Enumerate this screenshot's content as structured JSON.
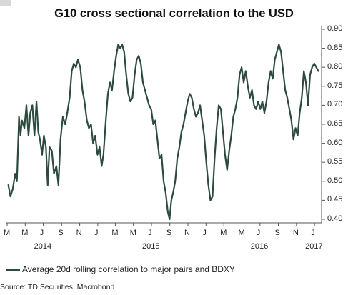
{
  "chart_data": {
    "type": "line",
    "title": "G10 cross sectional correlation to the USD",
    "xlabel": "",
    "ylabel": "",
    "x_range": [
      "2014-03-01",
      "2017-01-20"
    ],
    "ylim": [
      0.4,
      0.9
    ],
    "y_ticks": [
      0.4,
      0.45,
      0.5,
      0.55,
      0.6,
      0.65,
      0.7,
      0.75,
      0.8,
      0.85,
      0.9
    ],
    "y_tick_labels": [
      "0.40",
      "0.45",
      "0.50",
      "0.55",
      "0.60",
      "0.65",
      "0.70",
      "0.75",
      "0.80",
      "0.85",
      "0.90"
    ],
    "x_ticks": [
      {
        "date": "2014-03-01",
        "label": "M"
      },
      {
        "date": "2014-05-01",
        "label": "M"
      },
      {
        "date": "2014-07-01",
        "label": "J"
      },
      {
        "date": "2014-09-01",
        "label": "S"
      },
      {
        "date": "2014-11-01",
        "label": "N"
      },
      {
        "date": "2015-01-01",
        "label": "J"
      },
      {
        "date": "2015-03-01",
        "label": "M"
      },
      {
        "date": "2015-05-01",
        "label": "M"
      },
      {
        "date": "2015-07-01",
        "label": "J"
      },
      {
        "date": "2015-09-01",
        "label": "S"
      },
      {
        "date": "2015-11-01",
        "label": "N"
      },
      {
        "date": "2016-01-01",
        "label": "J"
      },
      {
        "date": "2016-03-01",
        "label": "M"
      },
      {
        "date": "2016-05-01",
        "label": "M"
      },
      {
        "date": "2016-07-01",
        "label": "J"
      },
      {
        "date": "2016-09-01",
        "label": "S"
      },
      {
        "date": "2016-11-01",
        "label": "N"
      },
      {
        "date": "2017-01-01",
        "label": "J"
      }
    ],
    "year_labels": [
      {
        "date": "2014-07-01",
        "label": "2014"
      },
      {
        "date": "2015-07-01",
        "label": "2015"
      },
      {
        "date": "2016-07-01",
        "label": "2016"
      },
      {
        "date": "2017-01-01",
        "label": "2017"
      }
    ],
    "grid": false,
    "legend_position": "bottom-left",
    "series": [
      {
        "name": "Average 20d rolling correlation to major pairs and BDXY",
        "color": "#2c4a3e",
        "points": [
          [
            "2014-03-05",
            0.49
          ],
          [
            "2014-03-12",
            0.46
          ],
          [
            "2014-03-20",
            0.48
          ],
          [
            "2014-03-28",
            0.52
          ],
          [
            "2014-04-03",
            0.5
          ],
          [
            "2014-04-10",
            0.67
          ],
          [
            "2014-04-15",
            0.62
          ],
          [
            "2014-04-20",
            0.66
          ],
          [
            "2014-04-28",
            0.64
          ],
          [
            "2014-05-05",
            0.7
          ],
          [
            "2014-05-12",
            0.62
          ],
          [
            "2014-05-18",
            0.68
          ],
          [
            "2014-05-25",
            0.7
          ],
          [
            "2014-06-01",
            0.62
          ],
          [
            "2014-06-08",
            0.71
          ],
          [
            "2014-06-14",
            0.63
          ],
          [
            "2014-06-20",
            0.61
          ],
          [
            "2014-06-27",
            0.57
          ],
          [
            "2014-07-03",
            0.62
          ],
          [
            "2014-07-10",
            0.59
          ],
          [
            "2014-07-16",
            0.49
          ],
          [
            "2014-07-22",
            0.59
          ],
          [
            "2014-07-30",
            0.58
          ],
          [
            "2014-08-06",
            0.52
          ],
          [
            "2014-08-14",
            0.54
          ],
          [
            "2014-08-21",
            0.49
          ],
          [
            "2014-08-28",
            0.61
          ],
          [
            "2014-09-05",
            0.67
          ],
          [
            "2014-09-13",
            0.65
          ],
          [
            "2014-09-20",
            0.68
          ],
          [
            "2014-09-28",
            0.72
          ],
          [
            "2014-10-05",
            0.79
          ],
          [
            "2014-10-12",
            0.81
          ],
          [
            "2014-10-19",
            0.8
          ],
          [
            "2014-10-26",
            0.82
          ],
          [
            "2014-11-03",
            0.8
          ],
          [
            "2014-11-10",
            0.74
          ],
          [
            "2014-11-17",
            0.71
          ],
          [
            "2014-11-25",
            0.66
          ],
          [
            "2014-12-02",
            0.64
          ],
          [
            "2014-12-09",
            0.65
          ],
          [
            "2014-12-16",
            0.6
          ],
          [
            "2014-12-23",
            0.62
          ],
          [
            "2014-12-31",
            0.57
          ],
          [
            "2015-01-07",
            0.59
          ],
          [
            "2015-01-14",
            0.54
          ],
          [
            "2015-01-20",
            0.57
          ],
          [
            "2015-01-28",
            0.66
          ],
          [
            "2015-02-04",
            0.73
          ],
          [
            "2015-02-11",
            0.76
          ],
          [
            "2015-02-18",
            0.74
          ],
          [
            "2015-02-25",
            0.79
          ],
          [
            "2015-03-04",
            0.83
          ],
          [
            "2015-03-11",
            0.86
          ],
          [
            "2015-03-18",
            0.85
          ],
          [
            "2015-03-24",
            0.86
          ],
          [
            "2015-03-31",
            0.84
          ],
          [
            "2015-04-07",
            0.78
          ],
          [
            "2015-04-14",
            0.73
          ],
          [
            "2015-04-21",
            0.71
          ],
          [
            "2015-04-28",
            0.72
          ],
          [
            "2015-05-05",
            0.78
          ],
          [
            "2015-05-12",
            0.82
          ],
          [
            "2015-05-19",
            0.83
          ],
          [
            "2015-05-26",
            0.81
          ],
          [
            "2015-06-02",
            0.76
          ],
          [
            "2015-06-09",
            0.74
          ],
          [
            "2015-06-16",
            0.72
          ],
          [
            "2015-06-23",
            0.7
          ],
          [
            "2015-06-30",
            0.69
          ],
          [
            "2015-07-07",
            0.65
          ],
          [
            "2015-07-14",
            0.66
          ],
          [
            "2015-07-21",
            0.61
          ],
          [
            "2015-07-28",
            0.56
          ],
          [
            "2015-08-04",
            0.57
          ],
          [
            "2015-08-11",
            0.5
          ],
          [
            "2015-08-18",
            0.47
          ],
          [
            "2015-08-25",
            0.42
          ],
          [
            "2015-08-31",
            0.4
          ],
          [
            "2015-09-06",
            0.45
          ],
          [
            "2015-09-12",
            0.47
          ],
          [
            "2015-09-19",
            0.5
          ],
          [
            "2015-09-26",
            0.56
          ],
          [
            "2015-10-03",
            0.59
          ],
          [
            "2015-10-10",
            0.63
          ],
          [
            "2015-10-17",
            0.65
          ],
          [
            "2015-10-24",
            0.68
          ],
          [
            "2015-10-31",
            0.71
          ],
          [
            "2015-11-07",
            0.73
          ],
          [
            "2015-11-14",
            0.72
          ],
          [
            "2015-11-21",
            0.69
          ],
          [
            "2015-11-28",
            0.67
          ],
          [
            "2015-12-05",
            0.68
          ],
          [
            "2015-12-12",
            0.7
          ],
          [
            "2015-12-19",
            0.66
          ],
          [
            "2015-12-26",
            0.62
          ],
          [
            "2016-01-02",
            0.55
          ],
          [
            "2016-01-09",
            0.49
          ],
          [
            "2016-01-16",
            0.45
          ],
          [
            "2016-01-23",
            0.46
          ],
          [
            "2016-01-30",
            0.56
          ],
          [
            "2016-02-06",
            0.64
          ],
          [
            "2016-02-13",
            0.7
          ],
          [
            "2016-02-20",
            0.69
          ],
          [
            "2016-02-27",
            0.63
          ],
          [
            "2016-03-05",
            0.57
          ],
          [
            "2016-03-12",
            0.53
          ],
          [
            "2016-03-19",
            0.58
          ],
          [
            "2016-03-26",
            0.62
          ],
          [
            "2016-04-02",
            0.67
          ],
          [
            "2016-04-09",
            0.69
          ],
          [
            "2016-04-16",
            0.72
          ],
          [
            "2016-04-23",
            0.78
          ],
          [
            "2016-04-30",
            0.8
          ],
          [
            "2016-05-07",
            0.76
          ],
          [
            "2016-05-14",
            0.79
          ],
          [
            "2016-05-21",
            0.75
          ],
          [
            "2016-05-28",
            0.72
          ],
          [
            "2016-06-04",
            0.74
          ],
          [
            "2016-06-11",
            0.7
          ],
          [
            "2016-06-18",
            0.69
          ],
          [
            "2016-06-25",
            0.71
          ],
          [
            "2016-07-02",
            0.69
          ],
          [
            "2016-07-09",
            0.71
          ],
          [
            "2016-07-16",
            0.68
          ],
          [
            "2016-07-23",
            0.71
          ],
          [
            "2016-07-30",
            0.76
          ],
          [
            "2016-08-06",
            0.79
          ],
          [
            "2016-08-13",
            0.77
          ],
          [
            "2016-08-20",
            0.82
          ],
          [
            "2016-08-27",
            0.84
          ],
          [
            "2016-09-03",
            0.86
          ],
          [
            "2016-09-10",
            0.84
          ],
          [
            "2016-09-17",
            0.79
          ],
          [
            "2016-09-24",
            0.74
          ],
          [
            "2016-10-01",
            0.72
          ],
          [
            "2016-10-08",
            0.69
          ],
          [
            "2016-10-15",
            0.66
          ],
          [
            "2016-10-22",
            0.61
          ],
          [
            "2016-10-29",
            0.64
          ],
          [
            "2016-11-05",
            0.62
          ],
          [
            "2016-11-12",
            0.68
          ],
          [
            "2016-11-19",
            0.72
          ],
          [
            "2016-11-26",
            0.79
          ],
          [
            "2016-12-03",
            0.76
          ],
          [
            "2016-12-10",
            0.7
          ],
          [
            "2016-12-17",
            0.78
          ],
          [
            "2016-12-24",
            0.8
          ],
          [
            "2016-12-31",
            0.81
          ],
          [
            "2017-01-07",
            0.8
          ],
          [
            "2017-01-14",
            0.79
          ]
        ]
      }
    ]
  },
  "legend": {
    "label": "Average 20d rolling correlation to major pairs and BDXY",
    "color": "#2c4a3e"
  },
  "source": "Source: TD Securities, Macrobond"
}
